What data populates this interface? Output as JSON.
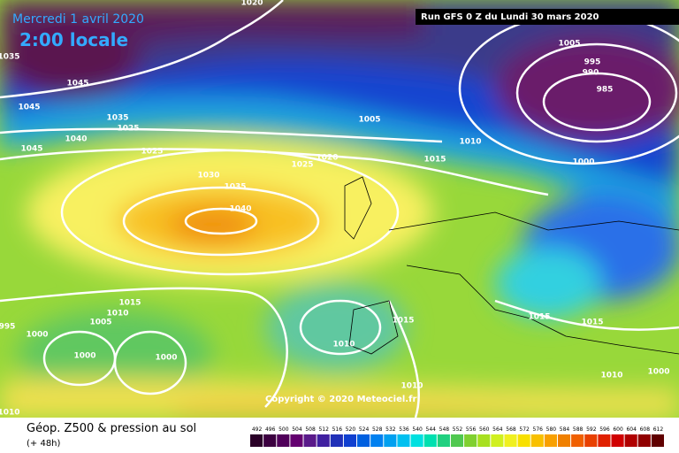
{
  "header": {
    "date": "Mercredi 1 avril 2020",
    "time": "2:00 locale",
    "run": "Run GFS 0 Z du Lundi 30 mars 2020"
  },
  "footer": {
    "title": "Géop. Z500 & pression au sol",
    "lead": "(+ 48h)",
    "copyright": "Copyright © 2020 Meteociel.fr"
  },
  "colorbar": {
    "labels": [
      "492",
      "496",
      "500",
      "504",
      "508",
      "512",
      "516",
      "520",
      "524",
      "528",
      "532",
      "536",
      "540",
      "544",
      "548",
      "552",
      "556",
      "560",
      "564",
      "568",
      "572",
      "576",
      "580",
      "584",
      "588",
      "592",
      "596",
      "600",
      "604",
      "608",
      "612"
    ]
  },
  "isobars": [
    "1020",
    "1035",
    "1045",
    "1045",
    "1035",
    "1025",
    "1040",
    "1045",
    "1025",
    "1005",
    "1010",
    "1015",
    "1020",
    "1025",
    "1030",
    "1035",
    "1040",
    "1005",
    "995",
    "990",
    "985",
    "1000",
    "1015",
    "1010",
    "1005",
    "995",
    "1000",
    "1000",
    "1000",
    "1010",
    "1015",
    "1015",
    "1015",
    "1010",
    "1010",
    "1010",
    "1000"
  ]
}
